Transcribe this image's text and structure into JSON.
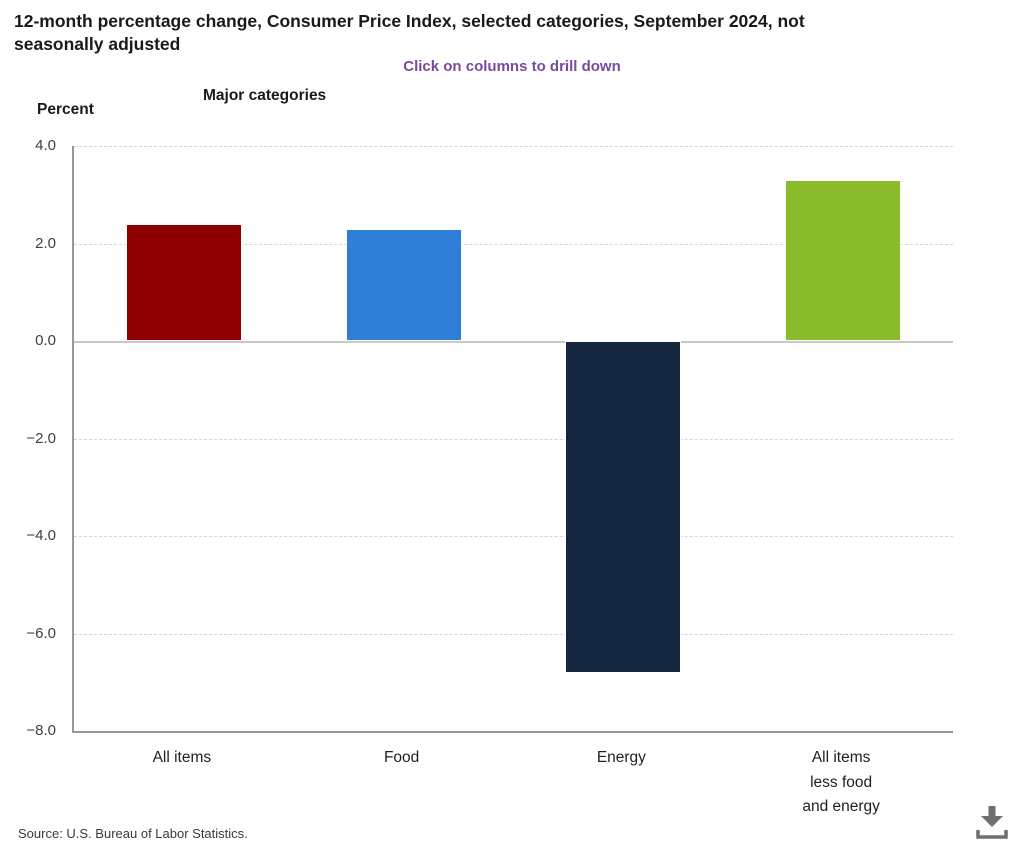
{
  "header": {
    "title_line1": "12-month percentage change, Consumer Price Index, selected categories, September 2024, not",
    "title_line2": "seasonally adjusted",
    "subtitle": "Click on columns to drill down",
    "x_axis_group_label": "Major categories",
    "y_unit_label": "Percent"
  },
  "chart_data": {
    "type": "bar",
    "title": "12-month percentage change, Consumer Price Index, selected categories, September 2024, not seasonally adjusted",
    "subtitle": "Click on columns to drill down",
    "xlabel": "Major categories",
    "ylabel": "Percent",
    "categories": [
      "All items",
      "Food",
      "Energy",
      "All items less food and energy"
    ],
    "category_display_lines": [
      [
        "All items"
      ],
      [
        "Food"
      ],
      [
        "Energy"
      ],
      [
        "All items",
        "less food",
        "and energy"
      ]
    ],
    "values": [
      2.4,
      2.3,
      -6.8,
      3.3
    ],
    "bar_colors": [
      "#8e0000",
      "#2f7ed8",
      "#14273e",
      "#8abb2a"
    ],
    "ylim": [
      -8,
      4
    ],
    "yticks": [
      4,
      2,
      0,
      -2,
      -4,
      -6,
      -8
    ],
    "ytick_labels": [
      "4.0",
      "2.0",
      "0.0",
      "−2.0",
      "−4.0",
      "−6.0",
      "−8.0"
    ],
    "grid": true,
    "legend": false
  },
  "footer": {
    "source": "Source: U.S. Bureau of Labor Statistics."
  },
  "icons": {
    "download": "download-arrow-to-tray"
  },
  "colors": {
    "subtitle_text": "#7a4a9e",
    "grid_line": "#d6d6d6",
    "zero_line": "#c8c8c8",
    "axis_line": "#979797",
    "title_text": "#1a1a1a",
    "download_icon": "#6f6f6f"
  }
}
